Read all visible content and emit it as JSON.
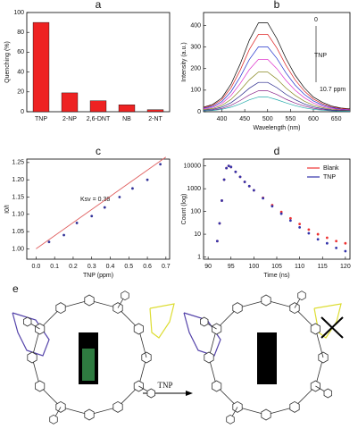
{
  "chart_data": [
    {
      "type": "bar",
      "panel_label": "a",
      "ylabel": "Quenching (%)",
      "categories": [
        "TNP",
        "2-NP",
        "2,6-DNT",
        "NB",
        "2-NT"
      ],
      "values": [
        90,
        19,
        11,
        7,
        2
      ],
      "color": "#ee2222",
      "ylim": [
        0,
        100
      ],
      "yticks": [
        0,
        20,
        40,
        60,
        80,
        100
      ]
    },
    {
      "type": "line",
      "panel_label": "b",
      "xlabel": "Wavelength (nm)",
      "ylabel": "Intensity (a.u.)",
      "x": [
        360,
        380,
        400,
        420,
        440,
        460,
        480,
        500,
        520,
        540,
        560,
        580,
        600,
        620,
        640,
        660,
        680
      ],
      "series": [
        {
          "color": "#000000",
          "values": [
            21,
            34,
            64,
            128,
            221,
            332,
            412,
            412,
            340,
            247,
            170,
            111,
            68,
            43,
            26,
            17,
            13
          ]
        },
        {
          "color": "#dd2222",
          "values": [
            19,
            30,
            56,
            111,
            192,
            289,
            359,
            359,
            296,
            215,
            148,
            96,
            59,
            37,
            22,
            15,
            11
          ]
        },
        {
          "color": "#2233cc",
          "values": [
            16,
            25,
            47,
            93,
            161,
            242,
            301,
            301,
            248,
            180,
            124,
            81,
            50,
            31,
            19,
            12,
            9
          ]
        },
        {
          "color": "#dd33cc",
          "values": [
            13,
            20,
            38,
            75,
            130,
            195,
            243,
            243,
            200,
            145,
            100,
            65,
            40,
            25,
            15,
            10,
            8
          ]
        },
        {
          "color": "#888822",
          "values": [
            10,
            15,
            29,
            57,
            99,
            148,
            184,
            184,
            152,
            110,
            76,
            49,
            30,
            19,
            11,
            8,
            6
          ]
        },
        {
          "color": "#222288",
          "values": [
            7,
            11,
            21,
            42,
            73,
            109,
            136,
            136,
            112,
            81,
            56,
            36,
            22,
            14,
            8,
            6,
            4
          ]
        },
        {
          "color": "#882288",
          "values": [
            5,
            8,
            15,
            30,
            52,
            78,
            97,
            97,
            80,
            58,
            40,
            26,
            16,
            10,
            6,
            4,
            3
          ]
        },
        {
          "color": "#22aaaa",
          "values": [
            4,
            6,
            11,
            21,
            36,
            55,
            68,
            68,
            56,
            41,
            28,
            18,
            11,
            7,
            4,
            3,
            2
          ]
        }
      ],
      "annotations": [
        "0",
        "TNP",
        "10.7 ppm"
      ],
      "xlim": [
        360,
        680
      ],
      "ylim": [
        0,
        460
      ],
      "xticks": [
        400,
        450,
        500,
        550,
        600,
        650
      ],
      "yticks": [
        0,
        100,
        200,
        300,
        400
      ]
    },
    {
      "type": "scatter",
      "panel_label": "c",
      "xlabel": "TNP (ppm)",
      "ylabel": "I0/I",
      "annotations": [
        "Ksv = 0.38"
      ],
      "series": [
        {
          "color": "#e06060",
          "style": "line",
          "x": [
            0.0,
            0.7
          ],
          "values": [
            1.0,
            1.266
          ]
        },
        {
          "color": "#333399",
          "style": "points",
          "x": [
            0.07,
            0.15,
            0.22,
            0.3,
            0.37,
            0.45,
            0.52,
            0.6,
            0.67
          ],
          "values": [
            1.02,
            1.04,
            1.075,
            1.095,
            1.12,
            1.15,
            1.175,
            1.2,
            1.245
          ]
        }
      ],
      "xlim": [
        -0.05,
        0.72
      ],
      "ylim": [
        0.97,
        1.26
      ],
      "xticks": [
        {
          "value": 0,
          "label": "0.0"
        },
        0.1,
        0.2,
        0.3,
        0.4,
        0.5,
        0.6,
        0.7
      ],
      "yticks": [
        {
          "value": 1,
          "label": "1.00"
        },
        1.05,
        {
          "value": 1.1,
          "label": "1.10"
        },
        1.15,
        {
          "value": 1.2,
          "label": "1.20"
        },
        1.25
      ]
    },
    {
      "type": "scatter",
      "panel_label": "d",
      "xlabel": "Time (ns)",
      "ylabel": "Count (log)",
      "yscale": "log",
      "legend": "upper right",
      "series": [
        {
          "name": "Blank",
          "color": "#ee3333",
          "style": "points",
          "x": [
            92,
            92.5,
            93,
            93.5,
            94,
            94.5,
            95,
            96,
            97,
            98,
            99,
            100,
            102,
            104,
            106,
            108,
            110,
            112,
            114,
            116,
            118,
            120
          ],
          "values": [
            5,
            30,
            300,
            2500,
            8000,
            10000,
            9000,
            5500,
            3300,
            2000,
            1300,
            850,
            400,
            190,
            95,
            50,
            28,
            16,
            10,
            7,
            5,
            4
          ]
        },
        {
          "name": "TNP",
          "color": "#3333aa",
          "style": "points",
          "x": [
            92,
            92.5,
            93,
            93.5,
            94,
            94.5,
            95,
            96,
            97,
            98,
            99,
            100,
            102,
            104,
            106,
            108,
            110,
            112,
            114,
            116,
            118,
            120
          ],
          "values": [
            5,
            30,
            300,
            2500,
            8000,
            10000,
            9000,
            5500,
            3300,
            2000,
            1300,
            850,
            380,
            170,
            80,
            40,
            20,
            11,
            6,
            4,
            2.5,
            1.8
          ]
        }
      ],
      "xlim": [
        89,
        121
      ],
      "ylim": [
        0.8,
        20000
      ],
      "xticks": [
        90,
        95,
        100,
        105,
        110,
        115,
        120
      ],
      "yticks": [
        1,
        10,
        100,
        1000,
        10000
      ]
    }
  ],
  "diagram": {
    "panel_label": "e",
    "arrow_label": "TNP"
  }
}
